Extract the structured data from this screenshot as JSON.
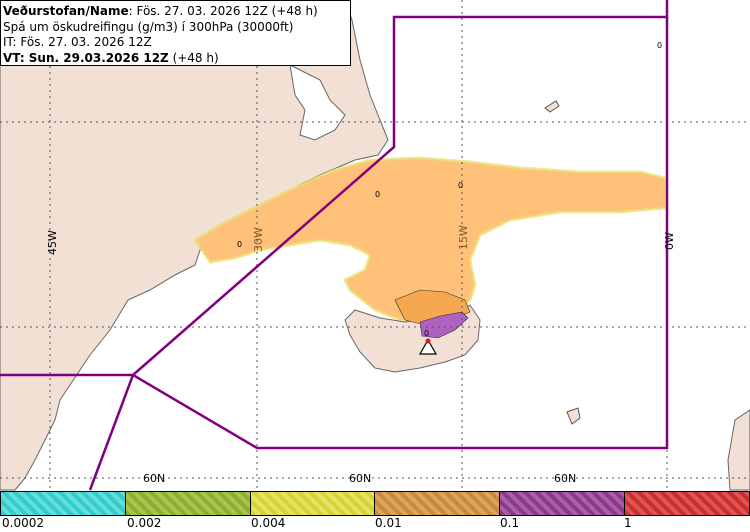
{
  "header": {
    "line1_label": "Veðurstofan/Name",
    "line1_value": ": Fös. 27. 03. 2026 12Z (+48 h)",
    "line2": "Spá um öskudreifingu (g/m3) í 300hPa (30000ft)",
    "line3": "IT: Fös. 27. 03. 2026 12Z",
    "line4": "VT: Sun. 29.03.2026 12Z",
    "line4_suffix": " (+48 h)"
  },
  "map_labels": {
    "lon_45w": "45W",
    "lon_30w": "30W",
    "lon_15w": "15W",
    "lon_0w": "0W",
    "lat_60n_a": "60N",
    "lat_60n_b": "60N",
    "lat_60n_c": "60N",
    "zero_a": "0",
    "zero_b": "0",
    "zero_c": "0",
    "zero_d": "0",
    "zero_e": "0"
  },
  "legend": {
    "ticks": [
      "0.0002",
      "0.002",
      "0.004",
      "0.01",
      "0.1",
      "1"
    ],
    "colors": [
      "#33cccc",
      "#8fad2f",
      "#d6d334",
      "#c98a3a",
      "#8a3a8a",
      "#c92f2f"
    ]
  },
  "colors": {
    "land": "#f2e0d4",
    "sea": "#ffffff",
    "plume_low": "#ffc07a",
    "plume_mid": "#f5b060",
    "plume_high": "#b060c0",
    "boundary": "#800080"
  }
}
